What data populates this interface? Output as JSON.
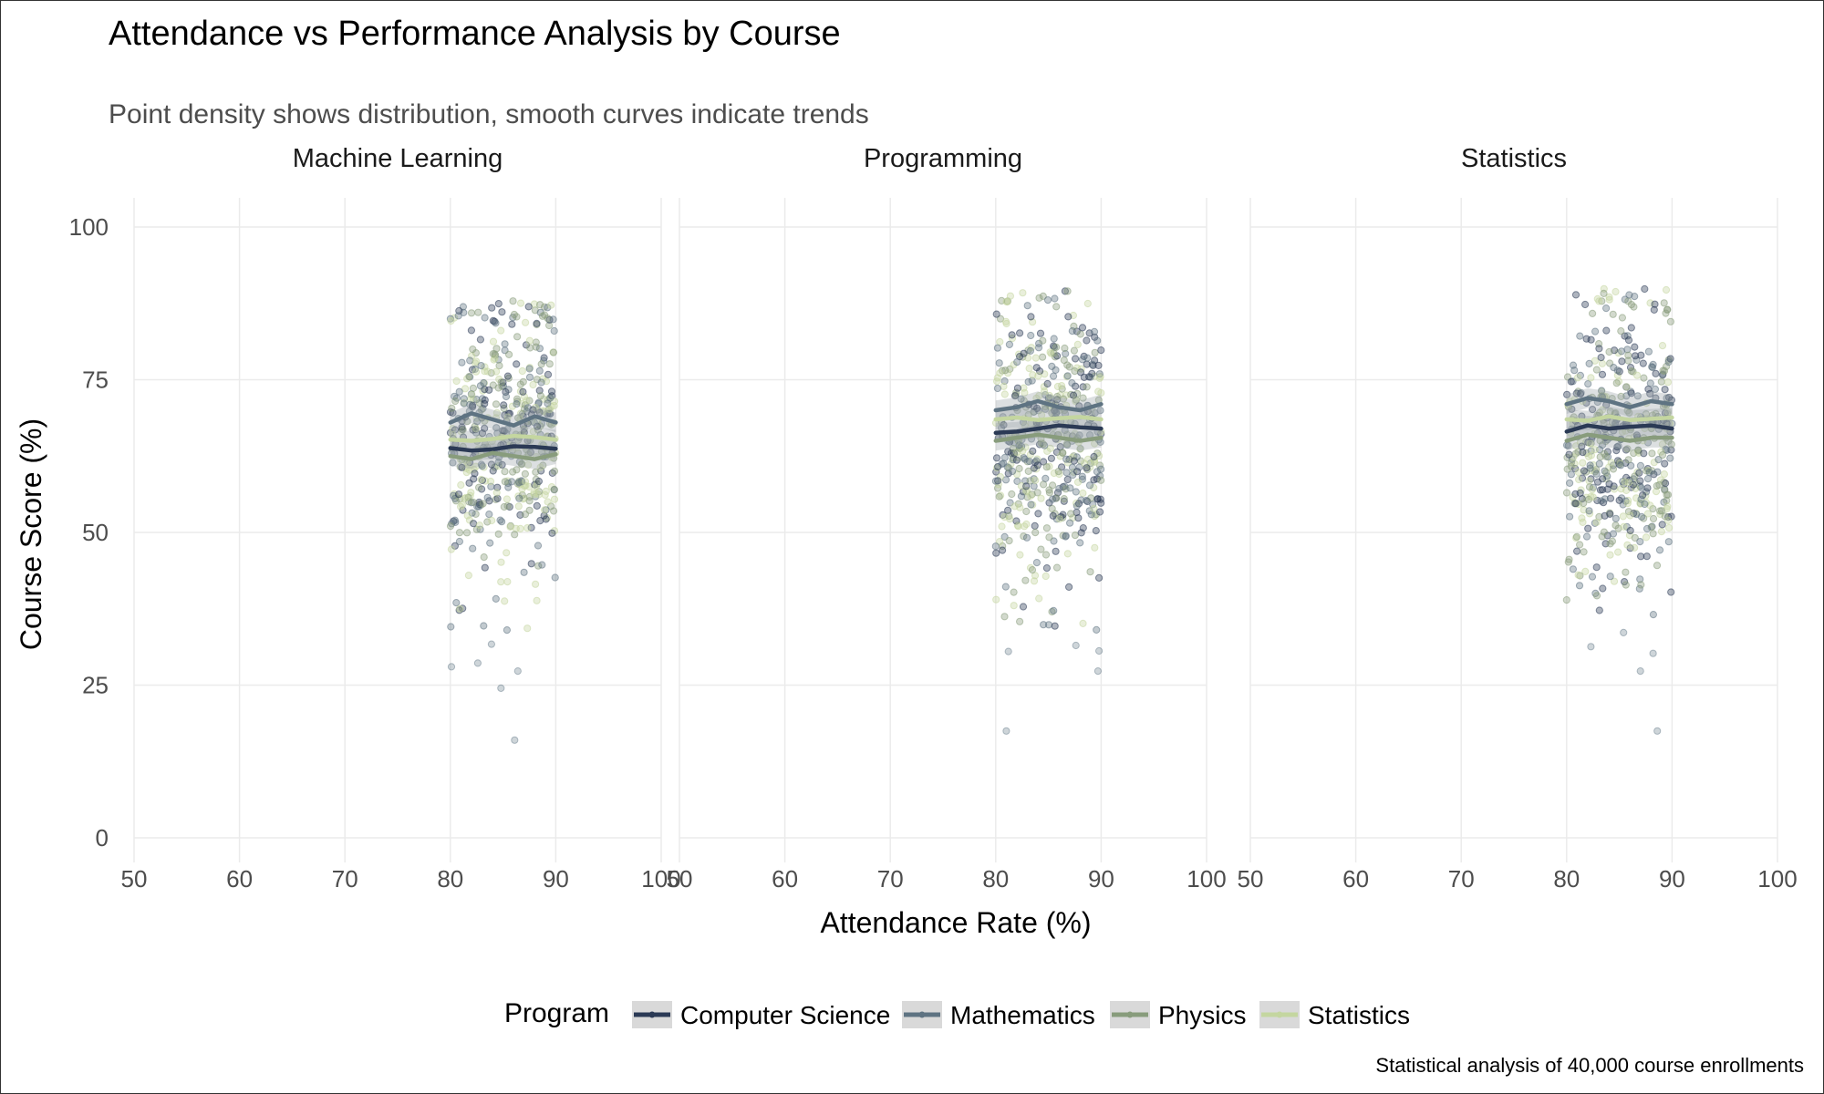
{
  "chart_data": {
    "type": "scatter",
    "title": "Attendance vs Performance Analysis by Course",
    "subtitle": "Point density shows distribution, smooth curves indicate trends",
    "xlabel": "Attendance Rate (%)",
    "ylabel": "Course Score (%)",
    "caption": "Statistical analysis of 40,000 course enrollments",
    "xlim": [
      50,
      100
    ],
    "ylim": [
      0,
      100
    ],
    "x_ticks": [
      50,
      60,
      70,
      80,
      90,
      100
    ],
    "y_ticks": [
      0,
      25,
      50,
      75,
      100
    ],
    "x_tick_labels": [
      "50",
      "60",
      "70",
      "80",
      "90",
      "100"
    ],
    "y_tick_labels": [
      "0",
      "25",
      "50",
      "75",
      "100"
    ],
    "grid": true,
    "legend": {
      "title": "Program",
      "position": "bottom",
      "entries": [
        "Computer Science",
        "Mathematics",
        "Physics",
        "Statistics"
      ]
    },
    "program_colors": {
      "Computer Science": "#2b3a55",
      "Mathematics": "#5e7382",
      "Physics": "#889c7c",
      "Statistics": "#c4d6a0"
    },
    "attendance_range": [
      80,
      90
    ],
    "panels": [
      {
        "course": "Machine Learning",
        "score_range": [
          16,
          88
        ],
        "outliers": [
          [
            86.1,
            16
          ],
          [
            84.8,
            24.5
          ],
          [
            80.1,
            28
          ],
          [
            86.4,
            27.3
          ],
          [
            82.6,
            28.6
          ],
          [
            83.9,
            31.7
          ]
        ],
        "trends": [
          {
            "program": "Computer Science",
            "x": [
              80,
              82,
              84,
              86,
              88,
              90
            ],
            "y": [
              63.8,
              63.4,
              63.6,
              64.1,
              64.0,
              63.7
            ]
          },
          {
            "program": "Mathematics",
            "x": [
              80,
              82,
              84,
              86,
              88,
              90
            ],
            "y": [
              68.0,
              69.5,
              68.5,
              67.5,
              69.0,
              68.0
            ]
          },
          {
            "program": "Physics",
            "x": [
              80,
              82,
              84,
              86,
              88,
              90
            ],
            "y": [
              62.5,
              62.0,
              63.0,
              62.5,
              62.0,
              62.8
            ]
          },
          {
            "program": "Statistics",
            "x": [
              80,
              82,
              84,
              86,
              88,
              90
            ],
            "y": [
              65.2,
              65.0,
              65.3,
              65.8,
              65.6,
              65.2
            ]
          }
        ]
      },
      {
        "course": "Programming",
        "score_range": [
          17.5,
          90
        ],
        "outliers": [
          [
            81.0,
            17.5
          ],
          [
            89.7,
            27.3
          ],
          [
            89.8,
            30.6
          ],
          [
            81.2,
            30.5
          ],
          [
            87.6,
            31.5
          ]
        ],
        "trends": [
          {
            "program": "Computer Science",
            "x": [
              80,
              82,
              84,
              86,
              88,
              90
            ],
            "y": [
              66.3,
              66.5,
              67.0,
              67.5,
              67.2,
              67.0
            ]
          },
          {
            "program": "Mathematics",
            "x": [
              80,
              82,
              84,
              86,
              88,
              90
            ],
            "y": [
              70.0,
              70.5,
              71.5,
              70.5,
              70.0,
              71.0
            ]
          },
          {
            "program": "Physics",
            "x": [
              80,
              82,
              84,
              86,
              88,
              90
            ],
            "y": [
              65.0,
              65.5,
              66.0,
              65.5,
              65.0,
              65.5
            ]
          },
          {
            "program": "Statistics",
            "x": [
              80,
              82,
              84,
              86,
              88,
              90
            ],
            "y": [
              68.5,
              68.8,
              68.4,
              68.7,
              68.9,
              68.5
            ]
          }
        ]
      },
      {
        "course": "Statistics",
        "score_range": [
          17.5,
          90
        ],
        "outliers": [
          [
            88.6,
            17.5
          ],
          [
            87.0,
            27.3
          ],
          [
            82.3,
            31.3
          ],
          [
            88.2,
            30.2
          ],
          [
            85.4,
            33.6
          ]
        ],
        "trends": [
          {
            "program": "Computer Science",
            "x": [
              80,
              82,
              84,
              86,
              88,
              90
            ],
            "y": [
              66.5,
              67.5,
              67.0,
              67.3,
              67.5,
              67.0
            ]
          },
          {
            "program": "Mathematics",
            "x": [
              80,
              82,
              84,
              86,
              88,
              90
            ],
            "y": [
              71.0,
              72.0,
              71.5,
              70.5,
              71.5,
              71.0
            ]
          },
          {
            "program": "Physics",
            "x": [
              80,
              82,
              84,
              86,
              88,
              90
            ],
            "y": [
              65.0,
              66.0,
              65.5,
              65.0,
              65.5,
              65.5
            ]
          },
          {
            "program": "Statistics",
            "x": [
              80,
              82,
              84,
              86,
              88,
              90
            ],
            "y": [
              68.5,
              68.3,
              69.0,
              68.4,
              68.6,
              68.8
            ]
          }
        ]
      }
    ]
  }
}
